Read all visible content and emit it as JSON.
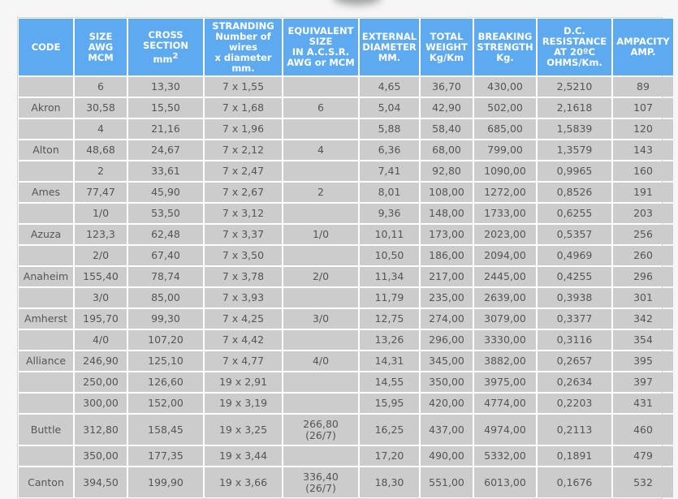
{
  "headers": {
    "code": "CODE",
    "size": [
      "SIZE",
      "AWG",
      "MCM"
    ],
    "cross": [
      "CROSS",
      "SECTION",
      "mm",
      "2"
    ],
    "stranding": [
      "STRANDING",
      "Number of",
      "wires",
      "x diameter",
      "mm."
    ],
    "equivalent": [
      "EQUIVALENT",
      "SIZE",
      "IN A.C.S.R.",
      "AWG or MCM"
    ],
    "external": [
      "EXTERNAL",
      "DIAMETER",
      "MM."
    ],
    "weight": [
      "TOTAL",
      "WEIGHT",
      "Kg/Km"
    ],
    "breaking": [
      "BREAKING",
      "STRENGTH",
      "Kg."
    ],
    "resistance": [
      "D.C.",
      "RESISTANCE",
      "AT 20ºC",
      "OHMS/Km."
    ],
    "ampacity": [
      "AMPACITY",
      "AMP."
    ]
  },
  "rows": [
    [
      "",
      "6",
      "13,30",
      "7 x 1,55",
      "",
      "4,65",
      "36,70",
      "430,00",
      "2,5210",
      "89"
    ],
    [
      "Akron",
      "30,58",
      "15,50",
      "7 x 1,68",
      "6",
      "5,04",
      "42,90",
      "502,00",
      "2,1618",
      "107"
    ],
    [
      "",
      "4",
      "21,16",
      "7 x 1,96",
      "",
      "5,88",
      "58,40",
      "685,00",
      "1,5839",
      "120"
    ],
    [
      "Alton",
      "48,68",
      "24,67",
      "7 x 2,12",
      "4",
      "6,36",
      "68,00",
      "799,00",
      "1,3579",
      "143"
    ],
    [
      "",
      "2",
      "33,61",
      "7 x 2,47",
      "",
      "7,41",
      "92,80",
      "1090,00",
      "0,9965",
      "160"
    ],
    [
      "Ames",
      "77,47",
      "45,90",
      "7 x 2,67",
      "2",
      "8,01",
      "108,00",
      "1272,00",
      "0,8526",
      "191"
    ],
    [
      "",
      "1/0",
      "53,50",
      "7 x 3,12",
      "",
      "9,36",
      "148,00",
      "1733,00",
      "0,6255",
      "203"
    ],
    [
      "Azuza",
      "123,3",
      "62,48",
      "7 x 3,37",
      "1/0",
      "10,11",
      "173,00",
      "2023,00",
      "0,5357",
      "256"
    ],
    [
      "",
      "2/0",
      "67,40",
      "7 x 3,50",
      "",
      "10,50",
      "186,00",
      "2094,00",
      "0,4969",
      "260"
    ],
    [
      "Anaheim",
      "155,40",
      "78,74",
      "7 x 3,78",
      "2/0",
      "11,34",
      "217,00",
      "2445,00",
      "0,4255",
      "296"
    ],
    [
      "",
      "3/0",
      "85,00",
      "7 x 3,93",
      "",
      "11,79",
      "235,00",
      "2639,00",
      "0,3938",
      "301"
    ],
    [
      "Amherst",
      "195,70",
      "99,30",
      "7 x 4,25",
      "3/0",
      "12,75",
      "274,00",
      "3079,00",
      "0,3377",
      "342"
    ],
    [
      "",
      "4/0",
      "107,20",
      "7 x 4,42",
      "",
      "13,26",
      "296,00",
      "3330,00",
      "0,3116",
      "354"
    ],
    [
      "Alliance",
      "246,90",
      "125,10",
      "7 x 4,77",
      "4/0",
      "14,31",
      "345,00",
      "3882,00",
      "0,2657",
      "395"
    ],
    [
      "",
      "250,00",
      "126,60",
      "19 x 2,91",
      "",
      "14,55",
      "350,00",
      "3975,00",
      "0,2634",
      "397"
    ],
    [
      "",
      "300,00",
      "152,00",
      "19 x 3,19",
      "",
      "15,95",
      "420,00",
      "4774,00",
      "0,2203",
      "431"
    ],
    [
      "Buttle",
      "312,80",
      "158,45",
      "19 x 3,25",
      "266,80\n(26/7)",
      "16,25",
      "437,00",
      "4974,00",
      "0,2113",
      "460"
    ],
    [
      "",
      "350,00",
      "177,35",
      "19 x 3,44",
      "",
      "17,20",
      "490,00",
      "5332,00",
      "0,1891",
      "479"
    ],
    [
      "Canton",
      "394,50",
      "199,90",
      "19 x 3,66",
      "336,40\n(26/7)",
      "18,30",
      "551,00",
      "6013,00",
      "0,1676",
      "532"
    ]
  ]
}
